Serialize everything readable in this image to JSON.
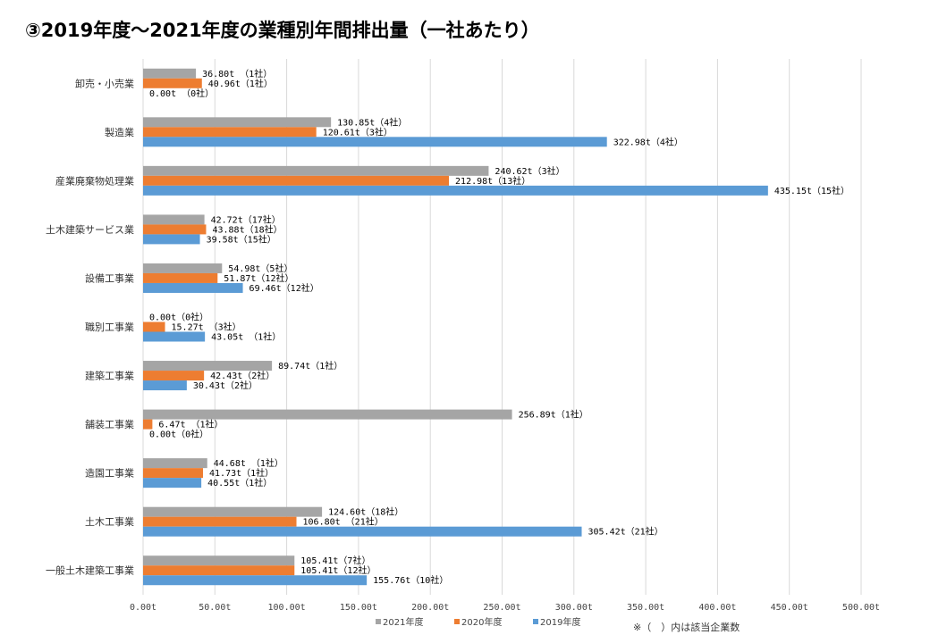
{
  "chart_data": {
    "type": "bar",
    "orientation": "horizontal",
    "title": "③2019年度～2021年度の業種別年間排出量（一社あたり）",
    "note": "※（　）内は該当企業数",
    "categories": [
      "卸売・小売業",
      "製造業",
      "産業廃棄物処理業",
      "土木建築サービス業",
      "設備工事業",
      "職別工事業",
      "建築工事業",
      "舗装工事業",
      "造園工事業",
      "土木工事業",
      "一般土木建築工事業"
    ],
    "series": [
      {
        "name": "2021年度",
        "color": "#a5a5a5",
        "values": [
          36.8,
          130.85,
          240.62,
          42.72,
          54.98,
          0.0,
          89.74,
          256.89,
          44.68,
          124.6,
          105.41
        ],
        "labels": [
          "36.80t （1社）",
          "130.85t（4社）",
          "240.62t（3社）",
          "42.72t（17社）",
          "54.98t（5社）",
          "0.00t（0社）",
          "89.74t（1社）",
          "256.89t（1社）",
          "44.68t （1社）",
          "124.60t（18社）",
          "105.41t（7社）"
        ]
      },
      {
        "name": "2020年度",
        "color": "#ed7d31",
        "values": [
          40.96,
          120.61,
          212.98,
          43.88,
          51.87,
          15.27,
          42.43,
          6.47,
          41.73,
          106.8,
          105.41
        ],
        "labels": [
          "40.96t（1社）",
          "120.61t（3社）",
          "212.98t（13社）",
          "43.88t（18社）",
          "51.87t（12社）",
          "15.27t （3社）",
          "42.43t（2社）",
          "6.47t （1社）",
          "41.73t（1社）",
          "106.80t （21社）",
          "105.41t（12社）"
        ]
      },
      {
        "name": "2019年度",
        "color": "#5b9bd5",
        "values": [
          0.0,
          322.98,
          435.15,
          39.58,
          69.46,
          43.05,
          30.43,
          0.0,
          40.55,
          305.42,
          155.76
        ],
        "labels": [
          "0.00t （0社）",
          "322.98t（4社）",
          "435.15t（15社）",
          "39.58t（15社）",
          "69.46t（12社）",
          "43.05t （1社）",
          "30.43t（2社）",
          "0.00t（0社）",
          "40.55t（1社）",
          "305.42t（21社）",
          "155.76t（10社）"
        ]
      }
    ],
    "xlim": [
      0,
      500
    ],
    "xticks": [
      "0.00t",
      "50.00t",
      "100.00t",
      "150.00t",
      "200.00t",
      "250.00t",
      "300.00t",
      "350.00t",
      "400.00t",
      "450.00t",
      "500.00t"
    ],
    "grid": true,
    "legend_position": "bottom"
  }
}
